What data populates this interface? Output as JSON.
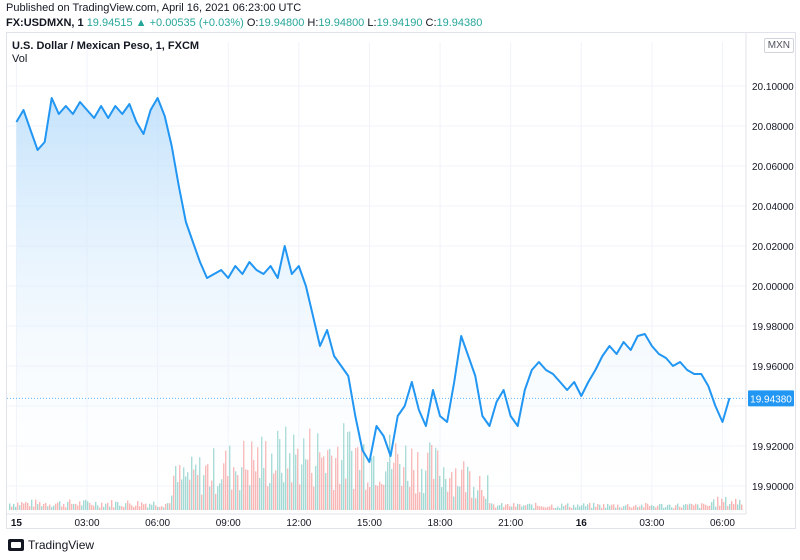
{
  "header": {
    "published": "Published on TradingView.com, April 16, 2021 06:23:00 UTC",
    "symbol": "FX:USDMXN, 1",
    "last": "19.94515",
    "arrow": "▲",
    "change": "+0.00535 (+0.03%)",
    "o_label": "O:",
    "o_value": "19.94800",
    "h_label": "H:",
    "h_value": "19.94800",
    "l_label": "L:",
    "l_value": "19.94190",
    "c_label": "C:",
    "c_value": "19.94380"
  },
  "legend": {
    "title": "U.S. Dollar / Mexican Peso, 1, FXCM",
    "vol": "Vol"
  },
  "currency_badge": "MXN",
  "brand": "TradingView",
  "colors": {
    "line": "#2196f3",
    "area_top": "#bbdefb",
    "up_volume": "#26a69a",
    "down_volume": "#ef5350",
    "price_label_bg": "#2196f3"
  },
  "chart_data": {
    "type": "area",
    "x_ticks": [
      "15",
      "03:00",
      "06:00",
      "09:00",
      "12:00",
      "15:00",
      "18:00",
      "21:00",
      "16",
      "03:00",
      "06:00"
    ],
    "x_tick_hours": [
      0,
      3,
      6,
      9,
      12,
      15,
      18,
      21,
      24,
      27,
      30
    ],
    "y_ticks": [
      "20.10000",
      "20.08000",
      "20.06000",
      "20.04000",
      "20.02000",
      "20.00000",
      "19.98000",
      "19.96000",
      "19.94000",
      "19.92000",
      "19.90000"
    ],
    "y_tick_values": [
      20.1,
      20.08,
      20.06,
      20.04,
      20.02,
      20.0,
      19.98,
      19.96,
      19.94,
      19.92,
      19.9
    ],
    "ylim": [
      19.887,
      20.112
    ],
    "xlim_hours": [
      -0.4,
      31.0
    ],
    "last_price_label": "19.94380",
    "last_price": 19.9438,
    "series": [
      {
        "x_hours": [
          0,
          0.3,
          0.6,
          0.9,
          1.2,
          1.5,
          1.8,
          2.1,
          2.4,
          2.7,
          3.0,
          3.3,
          3.6,
          3.9,
          4.2,
          4.5,
          4.8,
          5.1,
          5.4,
          5.7,
          6.0,
          6.3,
          6.6,
          6.9,
          7.2,
          7.5,
          7.8,
          8.1,
          8.4,
          8.7,
          9.0,
          9.3,
          9.6,
          9.9,
          10.2,
          10.5,
          10.8,
          11.1,
          11.4,
          11.7,
          12.0,
          12.3,
          12.6,
          12.9,
          13.2,
          13.5,
          13.8,
          14.1,
          14.4,
          14.7,
          15.0,
          15.3,
          15.6,
          15.9,
          16.2,
          16.5,
          16.8,
          17.1,
          17.4,
          17.7,
          18.0,
          18.3,
          18.6,
          18.9,
          19.2,
          19.5,
          19.8,
          20.1,
          20.4,
          20.7,
          21.0,
          21.3,
          21.6,
          21.9,
          22.2,
          22.5,
          22.8,
          23.1,
          23.4,
          23.7,
          24.0,
          24.3,
          24.6,
          24.9,
          25.2,
          25.5,
          25.8,
          26.1,
          26.4,
          26.7,
          27.0,
          27.3,
          27.6,
          27.9,
          28.2,
          28.5,
          28.8,
          29.1,
          29.4,
          29.7,
          30.0,
          30.3
        ],
        "values": [
          20.082,
          20.088,
          20.078,
          20.068,
          20.072,
          20.094,
          20.086,
          20.09,
          20.086,
          20.092,
          20.088,
          20.084,
          20.09,
          20.084,
          20.09,
          20.086,
          20.091,
          20.082,
          20.076,
          20.088,
          20.094,
          20.085,
          20.07,
          20.05,
          20.032,
          20.022,
          20.012,
          20.004,
          20.006,
          20.008,
          20.004,
          20.01,
          20.006,
          20.012,
          20.008,
          20.006,
          20.01,
          20.004,
          20.02,
          20.006,
          20.01,
          20.0,
          19.985,
          19.97,
          19.978,
          19.965,
          19.96,
          19.955,
          19.935,
          19.918,
          19.912,
          19.93,
          19.925,
          19.915,
          19.935,
          19.94,
          19.952,
          19.938,
          19.93,
          19.948,
          19.935,
          19.932,
          19.952,
          19.975,
          19.965,
          19.955,
          19.935,
          19.93,
          19.942,
          19.948,
          19.935,
          19.93,
          19.948,
          19.958,
          19.962,
          19.958,
          19.956,
          19.952,
          19.948,
          19.952,
          19.945,
          19.952,
          19.958,
          19.965,
          19.97,
          19.966,
          19.972,
          19.968,
          19.975,
          19.976,
          19.97,
          19.966,
          19.964,
          19.96,
          19.962,
          19.958,
          19.956,
          19.956,
          19.95,
          19.94,
          19.932,
          19.944
        ]
      }
    ],
    "volume_max_relative": 1.0
  }
}
